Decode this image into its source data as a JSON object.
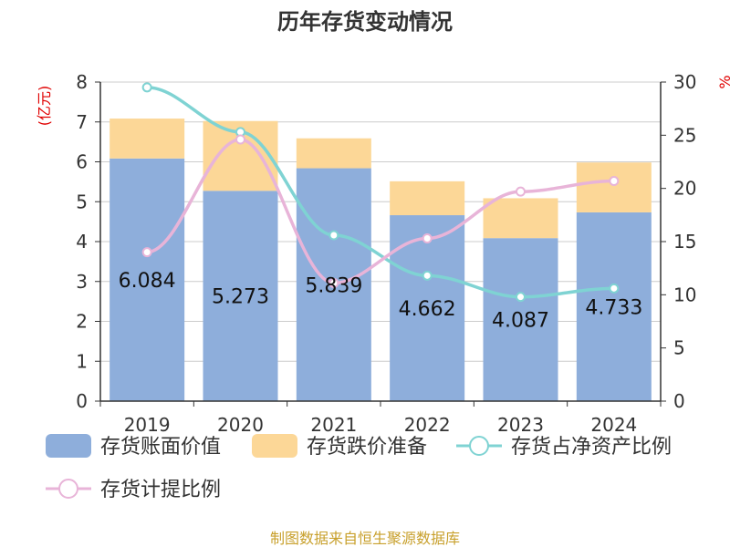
{
  "chart_data": {
    "type": "bar",
    "title": "历年存货变动情况",
    "categories": [
      "2019",
      "2020",
      "2021",
      "2022",
      "2023",
      "2024"
    ],
    "y_left": {
      "unit_label": "(亿元)",
      "ylim": [
        0,
        8
      ],
      "ticks": [
        0,
        1,
        2,
        3,
        4,
        5,
        6,
        7,
        8
      ]
    },
    "y_right": {
      "unit_label": "%",
      "ylim": [
        0,
        30
      ],
      "ticks": [
        0,
        5,
        10,
        15,
        20,
        25,
        30
      ]
    },
    "grid": true,
    "legend_position": "bottom",
    "series": [
      {
        "name": "存货账面价值",
        "type": "bar",
        "stack": "inv",
        "axis": "left",
        "color": "#8eaedb",
        "values": [
          6.084,
          5.273,
          5.839,
          4.662,
          4.087,
          4.733
        ],
        "show_labels": true
      },
      {
        "name": "存货跌价准备",
        "type": "bar",
        "stack": "inv",
        "axis": "left",
        "color": "#fcd797",
        "values": [
          1.0,
          1.75,
          0.75,
          0.85,
          1.0,
          1.25
        ]
      },
      {
        "name": "存货占净资产比例",
        "type": "line",
        "axis": "right",
        "color": "#7fd3d3",
        "values": [
          29.5,
          25.3,
          15.6,
          11.8,
          9.8,
          10.6
        ]
      },
      {
        "name": "存货计提比例",
        "type": "line",
        "axis": "right",
        "color": "#e8b4d8",
        "values": [
          14.0,
          24.6,
          11.1,
          15.3,
          19.7,
          20.7
        ]
      }
    ]
  },
  "source_note": "制图数据来自恒生聚源数据库"
}
